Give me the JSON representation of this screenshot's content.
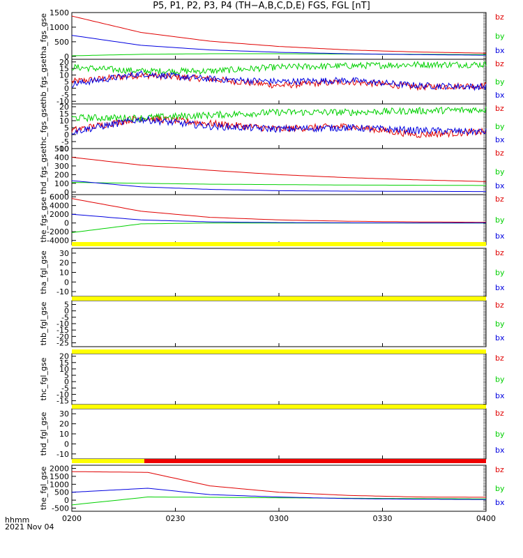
{
  "title": "P5, P1, P2, P3, P4 (TH−A,B,C,D,E) FGS, FGL [nT]",
  "time_unit": "hhmm",
  "date": "2021 Nov 04",
  "colors": {
    "bz": "#e00000",
    "by": "#00d000",
    "bx": "#0000e0",
    "flag_yellow": "#ffff00",
    "flag_red": "#ee0000"
  },
  "chart_data": [
    {
      "type": "line",
      "ylabel": "tha_fgs_gse",
      "ylim": [
        -100,
        1500
      ],
      "yticks": [
        0,
        500,
        1000,
        1500
      ],
      "legend": [
        "bz",
        "by",
        "bx"
      ],
      "x": [
        "02:00",
        "02:20",
        "02:40",
        "03:00",
        "03:20",
        "03:40",
        "04:00"
      ],
      "series": [
        {
          "name": "bz",
          "values": [
            1380,
            820,
            520,
            340,
            220,
            150,
            110
          ]
        },
        {
          "name": "by",
          "values": [
            20,
            70,
            90,
            90,
            80,
            70,
            60
          ]
        },
        {
          "name": "bx",
          "values": [
            720,
            380,
            220,
            140,
            90,
            60,
            40
          ]
        }
      ]
    },
    {
      "type": "line",
      "ylabel": "thb_fgs_gse",
      "ylim": [
        -12,
        22
      ],
      "yticks": [
        -10,
        -5,
        0,
        5,
        10,
        15,
        20
      ],
      "legend": [
        "bz",
        "by",
        "bx"
      ],
      "x": [
        "02:00",
        "02:20",
        "02:40",
        "03:00",
        "03:20",
        "03:40",
        "04:00"
      ],
      "series": [
        {
          "name": "bz",
          "values": [
            5,
            10,
            7,
            2,
            5,
            1,
            2
          ]
        },
        {
          "name": "by",
          "values": [
            16,
            13,
            13,
            16,
            17,
            18,
            18
          ]
        },
        {
          "name": "bx",
          "values": [
            3,
            11,
            7,
            5,
            6,
            2,
            1
          ]
        }
      ]
    },
    {
      "type": "line",
      "ylabel": "thc_fgs_gse",
      "ylim": [
        -10,
        22
      ],
      "yticks": [
        -10,
        -5,
        0,
        5,
        10,
        15,
        20
      ],
      "legend": [
        "bz",
        "by",
        "bx"
      ],
      "x": [
        "02:00",
        "02:20",
        "02:40",
        "03:00",
        "03:20",
        "03:40",
        "04:00"
      ],
      "series": [
        {
          "name": "bz",
          "values": [
            3,
            12,
            8,
            4,
            6,
            0,
            2
          ]
        },
        {
          "name": "by",
          "values": [
            12,
            12,
            14,
            16,
            16,
            17,
            18
          ]
        },
        {
          "name": "bx",
          "values": [
            2,
            11,
            6,
            4,
            5,
            3,
            2
          ]
        }
      ]
    },
    {
      "type": "line",
      "ylabel": "thd_fgs_gse",
      "ylim": [
        -30,
        500
      ],
      "yticks": [
        0,
        100,
        200,
        300,
        400,
        500
      ],
      "legend": [
        "bz",
        "by",
        "bx"
      ],
      "x": [
        "02:00",
        "02:20",
        "02:40",
        "03:00",
        "03:20",
        "03:40",
        "04:00"
      ],
      "series": [
        {
          "name": "bz",
          "values": [
            400,
            310,
            250,
            200,
            165,
            140,
            120
          ]
        },
        {
          "name": "by",
          "values": [
            110,
            100,
            90,
            85,
            80,
            78,
            75
          ]
        },
        {
          "name": "bx",
          "values": [
            130,
            60,
            30,
            15,
            10,
            8,
            5
          ]
        }
      ]
    },
    {
      "type": "line",
      "ylabel": "the_fgs_gse",
      "ylim": [
        -5000,
        6500
      ],
      "yticks": [
        -4000,
        -2000,
        0,
        2000,
        4000,
        6000
      ],
      "legend": [
        "bz",
        "by",
        "bx"
      ],
      "x": [
        "02:00",
        "02:20",
        "02:40",
        "03:00",
        "03:20",
        "03:40",
        "04:00"
      ],
      "series": [
        {
          "name": "bz",
          "values": [
            5600,
            2700,
            1300,
            700,
            400,
            250,
            150
          ]
        },
        {
          "name": "by",
          "values": [
            -2200,
            -200,
            0,
            0,
            0,
            0,
            0
          ]
        },
        {
          "name": "bx",
          "values": [
            2000,
            700,
            250,
            100,
            40,
            20,
            10
          ]
        }
      ]
    },
    {
      "type": "line",
      "ylabel": "tha_fgl_gse",
      "ylim": [
        -15,
        35
      ],
      "yticks": [
        -10,
        0,
        10,
        20,
        30
      ],
      "legend": [
        "bz",
        "by",
        "bx"
      ],
      "series": []
    },
    {
      "type": "line",
      "ylabel": "thb_fgl_gse",
      "ylim": [
        -28,
        8
      ],
      "yticks": [
        -25,
        -20,
        -15,
        -10,
        -5,
        0,
        5
      ],
      "legend": [
        "bz",
        "by",
        "bx"
      ],
      "series": []
    },
    {
      "type": "line",
      "ylabel": "thc_fgl_gse",
      "ylim": [
        -18,
        22
      ],
      "yticks": [
        -15,
        -10,
        -5,
        0,
        5,
        10,
        15,
        20
      ],
      "legend": [
        "bz",
        "by",
        "bx"
      ],
      "series": []
    },
    {
      "type": "line",
      "ylabel": "thd_fgl_gse",
      "ylim": [
        -15,
        35
      ],
      "yticks": [
        -10,
        0,
        10,
        20,
        30
      ],
      "legend": [
        "bz",
        "by",
        "bx"
      ],
      "series": []
    },
    {
      "type": "line",
      "ylabel": "the_fgl_gse",
      "ylim": [
        -700,
        2200
      ],
      "yticks": [
        -500,
        0,
        500,
        1000,
        1500,
        2000
      ],
      "legend": [
        "bz",
        "by",
        "bx"
      ],
      "x": [
        "02:00",
        "02:22",
        "02:40",
        "03:00",
        "03:20",
        "03:40",
        "04:00"
      ],
      "series": [
        {
          "name": "bz",
          "values": [
            1800,
            1750,
            900,
            500,
            300,
            200,
            180
          ]
        },
        {
          "name": "by",
          "values": [
            -300,
            200,
            180,
            150,
            120,
            100,
            80
          ]
        },
        {
          "name": "bx",
          "values": [
            500,
            750,
            350,
            200,
            100,
            60,
            40
          ]
        }
      ]
    }
  ],
  "flags": [
    {
      "above_panel": 6,
      "segments": [
        {
          "from": "02:00",
          "to": "04:00",
          "color": "yellow"
        }
      ]
    },
    {
      "above_panel": 7,
      "segments": [
        {
          "from": "02:00",
          "to": "04:00",
          "color": "yellow"
        }
      ]
    },
    {
      "above_panel": 8,
      "segments": [
        {
          "from": "02:00",
          "to": "04:00",
          "color": "yellow"
        }
      ]
    },
    {
      "above_panel": 9,
      "segments": [
        {
          "from": "02:00",
          "to": "04:00",
          "color": "yellow"
        }
      ]
    },
    {
      "above_panel": 10,
      "segments": [
        {
          "from": "02:00",
          "to": "02:21",
          "color": "yellow"
        },
        {
          "from": "02:21",
          "to": "04:00",
          "color": "red"
        }
      ]
    }
  ],
  "x_axis": {
    "ticks": [
      "0200",
      "0230",
      "0300",
      "0330",
      "0400"
    ],
    "range": [
      "02:00",
      "04:00"
    ]
  }
}
